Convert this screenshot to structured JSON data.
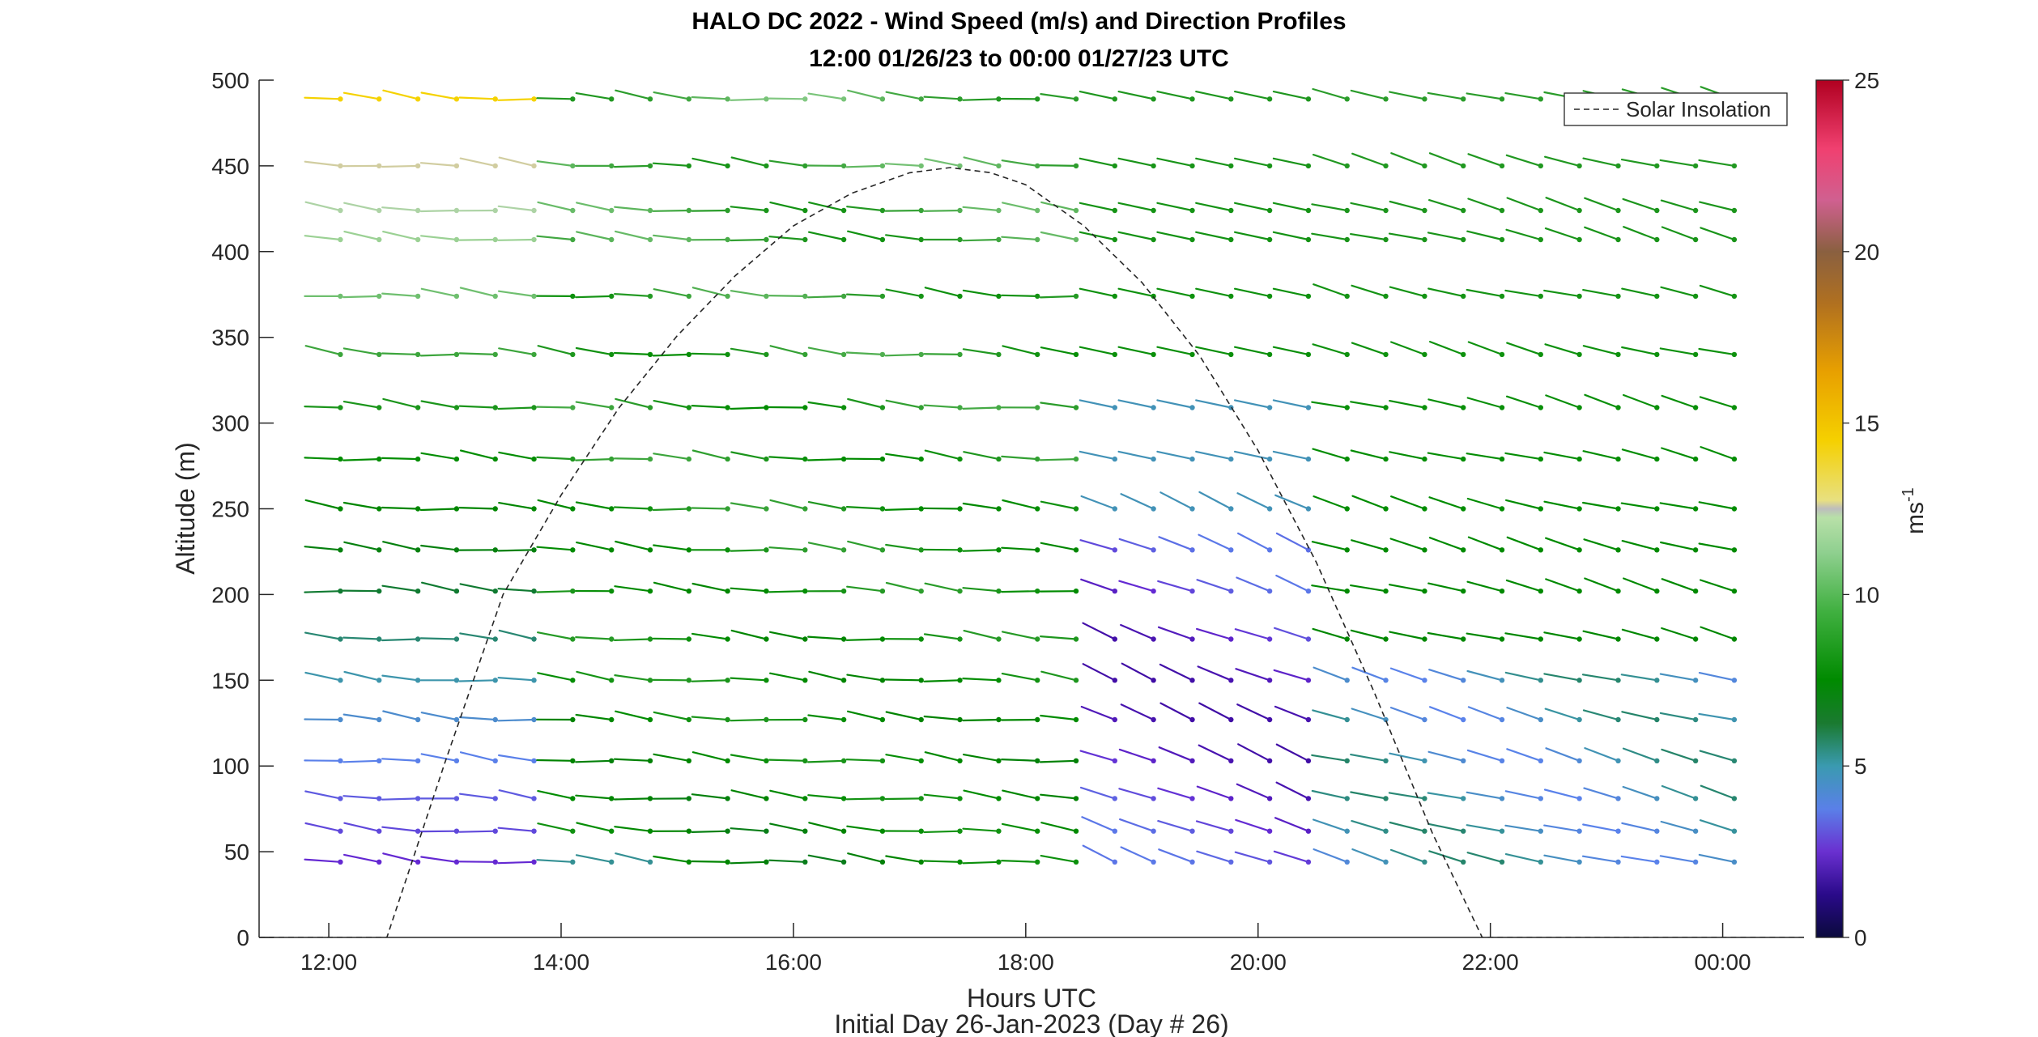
{
  "chart_data": {
    "type": "quiver",
    "title": "HALO DC 2022 - Wind Speed (m/s) and Direction Profiles",
    "subtitle": "12:00 01/26/23 to 00:00 01/27/23  UTC",
    "xlabel": "Hours UTC",
    "ylabel": "Altitude (m)",
    "footer": "Initial Day 26-Jan-2023 (Day # 26)",
    "x_ticks": [
      "12:00",
      "14:00",
      "16:00",
      "18:00",
      "20:00",
      "22:00",
      "00:00"
    ],
    "x_tick_hours": [
      12,
      14,
      16,
      18,
      20,
      22,
      24
    ],
    "xlim_hours": [
      11.4,
      24.7
    ],
    "y_ticks": [
      "0",
      "50",
      "100",
      "150",
      "200",
      "250",
      "300",
      "350",
      "400",
      "450",
      "500"
    ],
    "ylim": [
      0,
      500
    ],
    "colorbar": {
      "label": "ms",
      "label_exponent": "-1",
      "ticks": [
        "0",
        "5",
        "10",
        "15",
        "20",
        "25"
      ],
      "range": [
        0,
        25
      ]
    },
    "legend": {
      "entries": [
        "Solar Insolation"
      ],
      "position": "top-right",
      "style": "dashed"
    },
    "solar_insolation": {
      "hours": [
        11.4,
        12.5,
        13.0,
        13.5,
        14.0,
        14.5,
        15.0,
        15.5,
        16.0,
        16.5,
        17.0,
        17.35,
        17.7,
        18.0,
        18.5,
        19.0,
        19.5,
        20.0,
        20.5,
        21.0,
        21.5,
        21.93,
        24.7
      ],
      "altitude_equivalent": [
        0,
        0,
        102,
        200,
        258,
        309,
        351,
        386,
        415,
        434,
        446,
        449,
        446,
        439,
        415,
        382,
        339,
        284,
        219,
        143,
        61,
        0,
        0
      ]
    },
    "wind_altitudes": [
      44,
      62,
      81,
      103,
      127,
      150,
      174,
      202,
      226,
      250,
      279,
      309,
      340,
      374,
      407,
      424,
      450,
      489
    ],
    "wind_grid": {
      "hour_start": 12.1,
      "hour_end": 24.1,
      "steps": 37,
      "gap_hours": [
        18.57,
        18.63
      ]
    },
    "wind_speed_summary": {
      "lowest_levels_morning": 3,
      "upper_levels_morning": 14,
      "midday_typical": 8,
      "evening_lower_levels": 3,
      "night_typical": 6
    }
  }
}
